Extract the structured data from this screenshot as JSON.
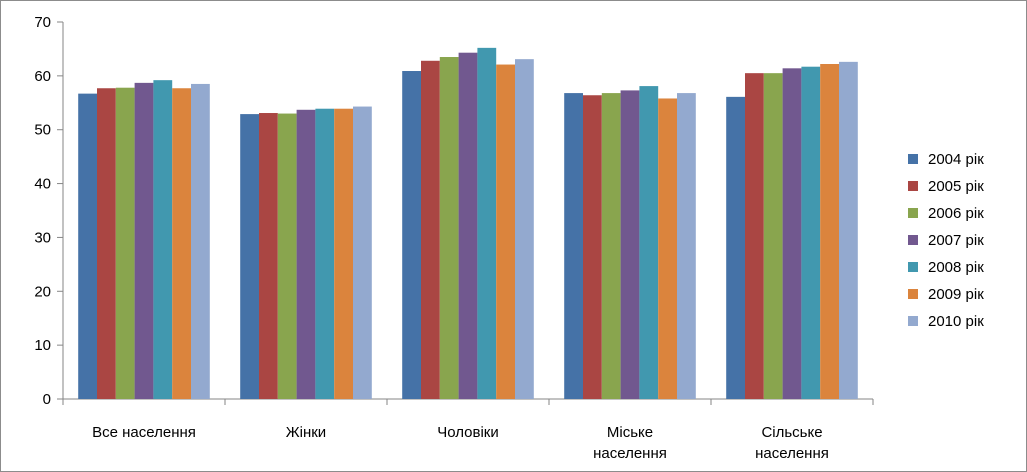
{
  "chart_data": {
    "type": "bar",
    "title": "",
    "xlabel": "",
    "ylabel": "",
    "ylim": [
      0,
      70
    ],
    "yticks": [
      0,
      10,
      20,
      30,
      40,
      50,
      60,
      70
    ],
    "grid": false,
    "legend_position": "right",
    "categories": [
      [
        "Все населення"
      ],
      [
        "Жінки"
      ],
      [
        "Чоловіки"
      ],
      [
        "Міське",
        "населення"
      ],
      [
        "Сільське",
        "населення"
      ]
    ],
    "series": [
      {
        "name": "2004 рік",
        "color": "#4572A7",
        "values": [
          56.7,
          52.9,
          60.9,
          56.8,
          56.1
        ]
      },
      {
        "name": "2005 рік",
        "color": "#AA4643",
        "values": [
          57.7,
          53.1,
          62.8,
          56.4,
          60.5
        ]
      },
      {
        "name": "2006 рік",
        "color": "#89A54E",
        "values": [
          57.8,
          53.0,
          63.5,
          56.8,
          60.5
        ]
      },
      {
        "name": "2007 рік",
        "color": "#71588F",
        "values": [
          58.7,
          53.7,
          64.3,
          57.3,
          61.4
        ]
      },
      {
        "name": "2008 рік",
        "color": "#4198AF",
        "values": [
          59.2,
          53.9,
          65.2,
          58.1,
          61.7
        ]
      },
      {
        "name": "2009 рік",
        "color": "#DB843D",
        "values": [
          57.7,
          53.9,
          62.1,
          55.8,
          62.2
        ]
      },
      {
        "name": "2010 рік",
        "color": "#93A9CF",
        "values": [
          58.5,
          54.3,
          63.1,
          56.8,
          62.6
        ]
      }
    ]
  }
}
